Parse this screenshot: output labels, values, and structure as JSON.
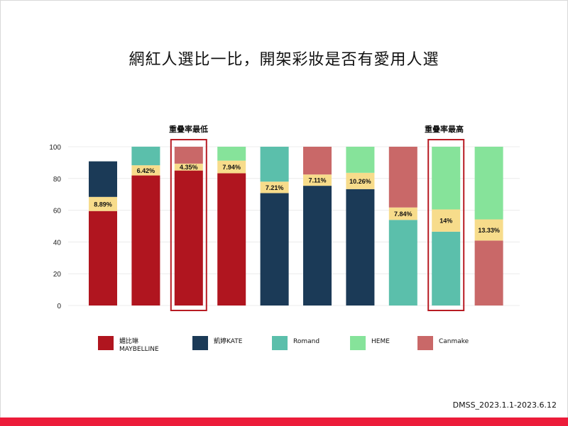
{
  "title": "網紅人選比一比，開架彩妝是否有愛用人選",
  "annotations": {
    "low": "重疊率最低",
    "high": "重疊率最高"
  },
  "source": "DMSS_2023.1.1-2023.6.12",
  "colors": {
    "overlap": "#f7dc8b",
    "highlight_box": "#b81c24",
    "bottom_bar": "#ec1c3a"
  },
  "legend": [
    {
      "key": "maybelline",
      "line1": "媚比琳",
      "line2": "MAYBELLINE",
      "color": "#b0151f"
    },
    {
      "key": "kate",
      "line1": "凱婷KATE",
      "line2": "",
      "color": "#1b3a57"
    },
    {
      "key": "romand",
      "line1": "Romand",
      "line2": "",
      "color": "#5bbfab"
    },
    {
      "key": "heme",
      "line1": "HEME",
      "line2": "",
      "color": "#86e39a"
    },
    {
      "key": "canmake",
      "line1": "Canmake",
      "line2": "",
      "color": "#c96868"
    }
  ],
  "chart_data": {
    "type": "bar",
    "stacked": true,
    "ylim": [
      0,
      100
    ],
    "yticks": [
      0,
      20,
      40,
      60,
      80,
      100
    ],
    "grid": true,
    "legend_position": "bottom",
    "bars": [
      {
        "bottom": "maybelline",
        "bottom_value": 59.5,
        "overlap": 8.89,
        "overlap_label": "8.89%",
        "top": "kate",
        "top_value": 22.4,
        "highlighted": false
      },
      {
        "bottom": "maybelline",
        "bottom_value": 81.9,
        "overlap": 6.42,
        "overlap_label": "6.42%",
        "top": "romand",
        "top_value": 11.7,
        "highlighted": false
      },
      {
        "bottom": "maybelline",
        "bottom_value": 85.0,
        "overlap": 4.35,
        "overlap_label": "4.35%",
        "top": "canmake",
        "top_value": 10.65,
        "highlighted": true
      },
      {
        "bottom": "maybelline",
        "bottom_value": 83.3,
        "overlap": 7.94,
        "overlap_label": "7.94%",
        "top": "heme",
        "top_value": 8.76,
        "highlighted": false
      },
      {
        "bottom": "kate",
        "bottom_value": 70.8,
        "overlap": 7.21,
        "overlap_label": "7.21%",
        "top": "romand",
        "top_value": 21.99,
        "highlighted": false
      },
      {
        "bottom": "kate",
        "bottom_value": 75.4,
        "overlap": 7.11,
        "overlap_label": "7.11%",
        "top": "canmake",
        "top_value": 17.49,
        "highlighted": false
      },
      {
        "bottom": "kate",
        "bottom_value": 73.3,
        "overlap": 10.26,
        "overlap_label": "10.26%",
        "top": "heme",
        "top_value": 16.44,
        "highlighted": false
      },
      {
        "bottom": "romand",
        "bottom_value": 53.9,
        "overlap": 7.84,
        "overlap_label": "7.84%",
        "top": "canmake",
        "top_value": 38.26,
        "highlighted": false
      },
      {
        "bottom": "romand",
        "bottom_value": 46.5,
        "overlap": 14.0,
        "overlap_label": "14%",
        "top": "heme",
        "top_value": 39.5,
        "highlighted": true
      },
      {
        "bottom": "canmake",
        "bottom_value": 40.9,
        "overlap": 13.33,
        "overlap_label": "13.33%",
        "top": "heme",
        "top_value": 45.77,
        "highlighted": false
      }
    ]
  }
}
